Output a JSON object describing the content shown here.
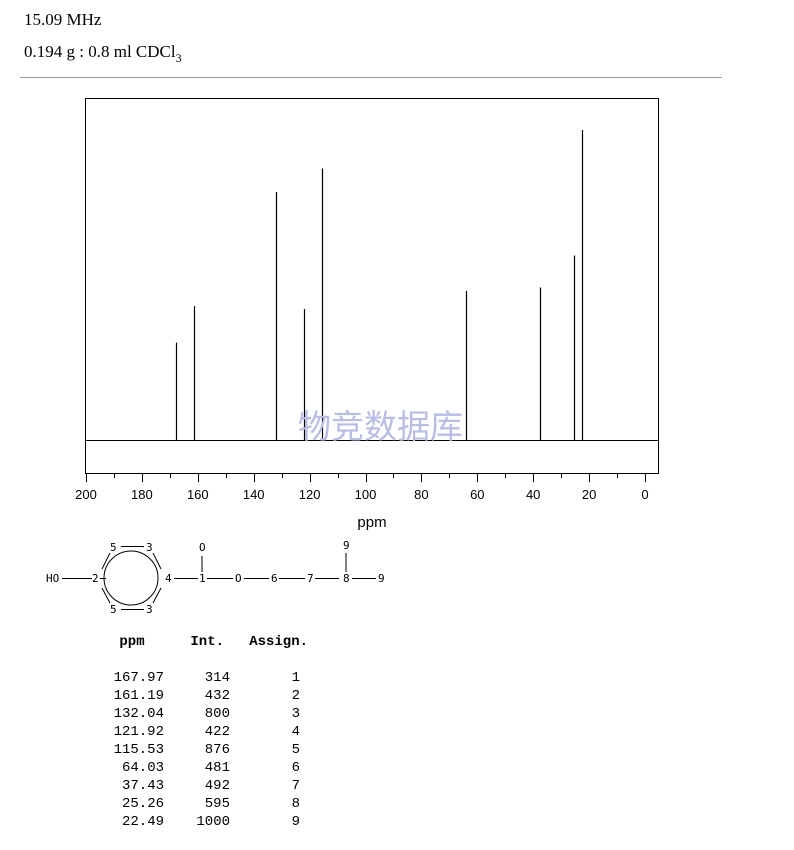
{
  "header": {
    "frequency": "15.09 MHz",
    "sample_prefix": "0.194 g : 0.8 ml CDCl",
    "sample_sub": "3"
  },
  "watermark": "物竞数据库",
  "colors": {
    "peaks": "#000000",
    "frame": "#000000",
    "rule": "#9a9a9a",
    "watermark": "#b7bde3"
  },
  "chart_data": {
    "type": "line",
    "xlabel": "ppm",
    "ylabel": "",
    "xlim": [
      200,
      0
    ],
    "x_reversed": true,
    "ylim": [
      0,
      1000
    ],
    "x_ticks": [
      "200",
      "180",
      "160",
      "140",
      "120",
      "100",
      "80",
      "60",
      "40",
      "20",
      "0"
    ],
    "grid": false,
    "peaks": [
      {
        "ppm": 167.97,
        "intensity": 314
      },
      {
        "ppm": 161.19,
        "intensity": 432
      },
      {
        "ppm": 132.04,
        "intensity": 800
      },
      {
        "ppm": 121.92,
        "intensity": 422
      },
      {
        "ppm": 115.53,
        "intensity": 876
      },
      {
        "ppm": 64.03,
        "intensity": 481
      },
      {
        "ppm": 37.43,
        "intensity": 492
      },
      {
        "ppm": 25.26,
        "intensity": 595
      },
      {
        "ppm": 22.49,
        "intensity": 1000
      }
    ]
  },
  "structure": {
    "atoms": {
      "ho": "HO",
      "c2": "2",
      "c5a": "5",
      "c3a": "3",
      "c5b": "5",
      "c3b": "3",
      "c4": "4",
      "c1": "1",
      "o_carbonyl": "O",
      "o_ester": "O",
      "c6": "6",
      "c7": "7",
      "c8": "8",
      "c9a": "9",
      "c9b": "9"
    }
  },
  "table": {
    "headers": {
      "ppm": "ppm",
      "int": "Int.",
      "assign": "Assign."
    },
    "rows": [
      {
        "ppm": "167.97",
        "int": "314",
        "assign": "1"
      },
      {
        "ppm": "161.19",
        "int": "432",
        "assign": "2"
      },
      {
        "ppm": "132.04",
        "int": "800",
        "assign": "3"
      },
      {
        "ppm": "121.92",
        "int": "422",
        "assign": "4"
      },
      {
        "ppm": "115.53",
        "int": "876",
        "assign": "5"
      },
      {
        "ppm": "64.03",
        "int": "481",
        "assign": "6"
      },
      {
        "ppm": "37.43",
        "int": "492",
        "assign": "7"
      },
      {
        "ppm": "25.26",
        "int": "595",
        "assign": "8"
      },
      {
        "ppm": "22.49",
        "int": "1000",
        "assign": "9"
      }
    ]
  }
}
